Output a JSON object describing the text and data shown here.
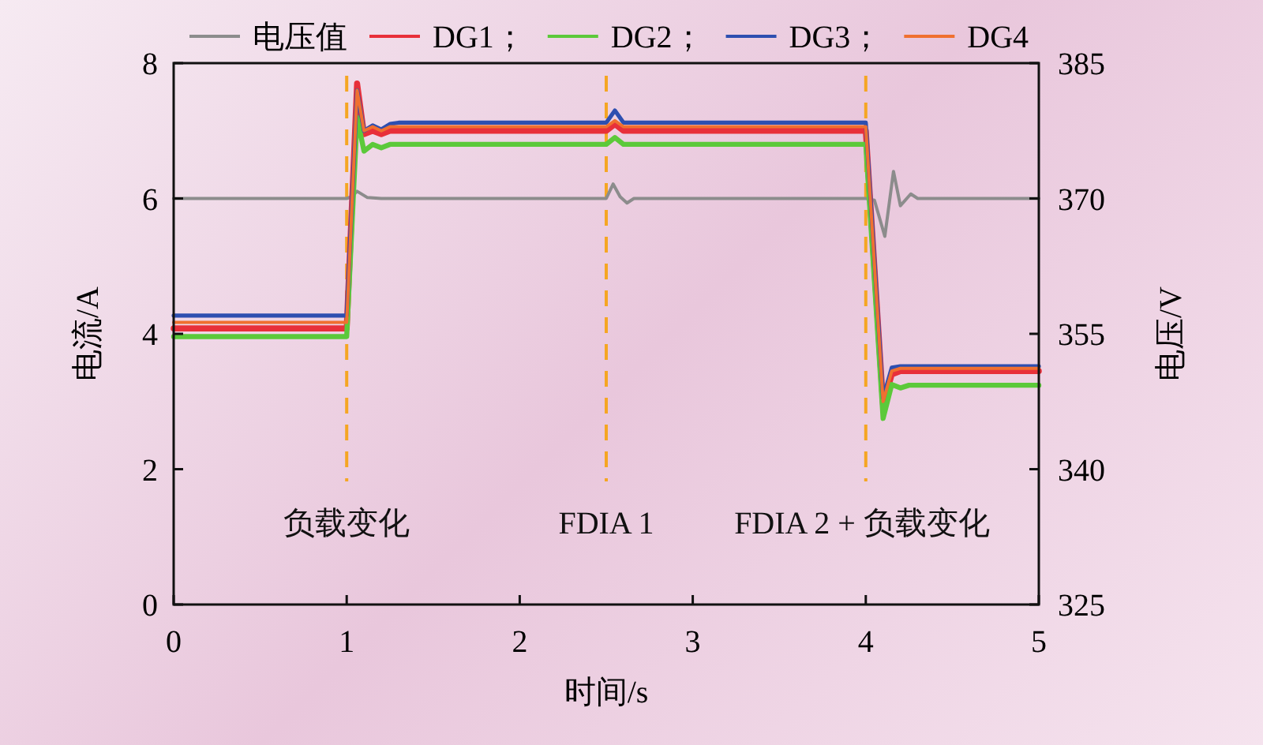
{
  "chart_data": {
    "type": "line",
    "xlabel": "时间/s",
    "ylabel": "电流/A",
    "y2label": "电压/V",
    "xlim": [
      0,
      5
    ],
    "xticks": [
      0,
      1,
      2,
      3,
      4,
      5
    ],
    "ylim": [
      0,
      8
    ],
    "yticks": [
      0,
      2,
      4,
      6,
      8
    ],
    "y2lim": [
      325,
      385
    ],
    "y2ticks": [
      325,
      340,
      355,
      370,
      385
    ],
    "legend": "top",
    "grid": false,
    "line_style": "solid",
    "marker": "none",
    "series": [
      {
        "name": "电压值",
        "color": "#8c8c8c",
        "axis": "y2",
        "x": [
          0,
          1,
          1.03,
          1.06,
          1.12,
          1.2,
          2.5,
          2.54,
          2.58,
          2.62,
          2.66,
          4,
          4.05,
          4.11,
          4.16,
          4.2,
          4.26,
          4.3,
          5
        ],
        "values": [
          370,
          370,
          370.2,
          370.8,
          370.1,
          370,
          370,
          371.6,
          370.2,
          369.5,
          370,
          370,
          369.8,
          365.8,
          373,
          369.2,
          370.5,
          370,
          370
        ]
      },
      {
        "name": "DG1；",
        "color": "#e8303a",
        "x": [
          0,
          1,
          1.06,
          1.1,
          1.15,
          1.2,
          1.25,
          1.3,
          2.5,
          2.55,
          2.6,
          4,
          4.1,
          4.15,
          4.2,
          5
        ],
        "values": [
          4.08,
          4.08,
          7.7,
          6.95,
          7.0,
          6.95,
          7.0,
          7.0,
          7.0,
          7.1,
          7.0,
          7.0,
          2.95,
          3.4,
          3.45,
          3.45
        ]
      },
      {
        "name": "DG2；",
        "color": "#5cc93a",
        "x": [
          0,
          1,
          1.06,
          1.1,
          1.15,
          1.2,
          1.25,
          1.3,
          2.5,
          2.55,
          2.6,
          4,
          4.1,
          4.15,
          4.2,
          4.25,
          5
        ],
        "values": [
          3.96,
          3.96,
          7.2,
          6.7,
          6.8,
          6.75,
          6.8,
          6.8,
          6.8,
          6.9,
          6.8,
          6.8,
          2.75,
          3.25,
          3.2,
          3.24,
          3.24
        ]
      },
      {
        "name": "DG3；",
        "color": "#2e4fb0",
        "x": [
          0,
          1,
          1.06,
          1.1,
          1.15,
          1.2,
          1.25,
          1.3,
          2.5,
          2.55,
          2.6,
          4,
          4.1,
          4.15,
          4.2,
          5
        ],
        "values": [
          4.27,
          4.27,
          7.6,
          7.0,
          7.08,
          7.02,
          7.1,
          7.12,
          7.12,
          7.3,
          7.12,
          7.12,
          3.05,
          3.5,
          3.52,
          3.52
        ]
      },
      {
        "name": "DG4",
        "color": "#f07030",
        "x": [
          0,
          1,
          1.06,
          1.1,
          1.15,
          1.2,
          1.25,
          1.3,
          2.5,
          2.55,
          2.6,
          4,
          4.1,
          4.15,
          4.2,
          5
        ],
        "values": [
          4.17,
          4.17,
          7.6,
          7.0,
          7.06,
          7.0,
          7.06,
          7.06,
          7.06,
          7.15,
          7.06,
          7.06,
          3.0,
          3.45,
          3.49,
          3.49
        ]
      }
    ],
    "ref_lines": [
      {
        "axis": "x",
        "value": 1,
        "label": "负载变化",
        "color": "#f5a623",
        "line_style": "dashed"
      },
      {
        "axis": "x",
        "value": 2.5,
        "label": "FDIA 1",
        "color": "#f5a623",
        "line_style": "dashed"
      },
      {
        "axis": "x",
        "value": 4,
        "label": "FDIA 2 + 负载变化",
        "color": "#f5a623",
        "line_style": "dashed"
      }
    ]
  }
}
